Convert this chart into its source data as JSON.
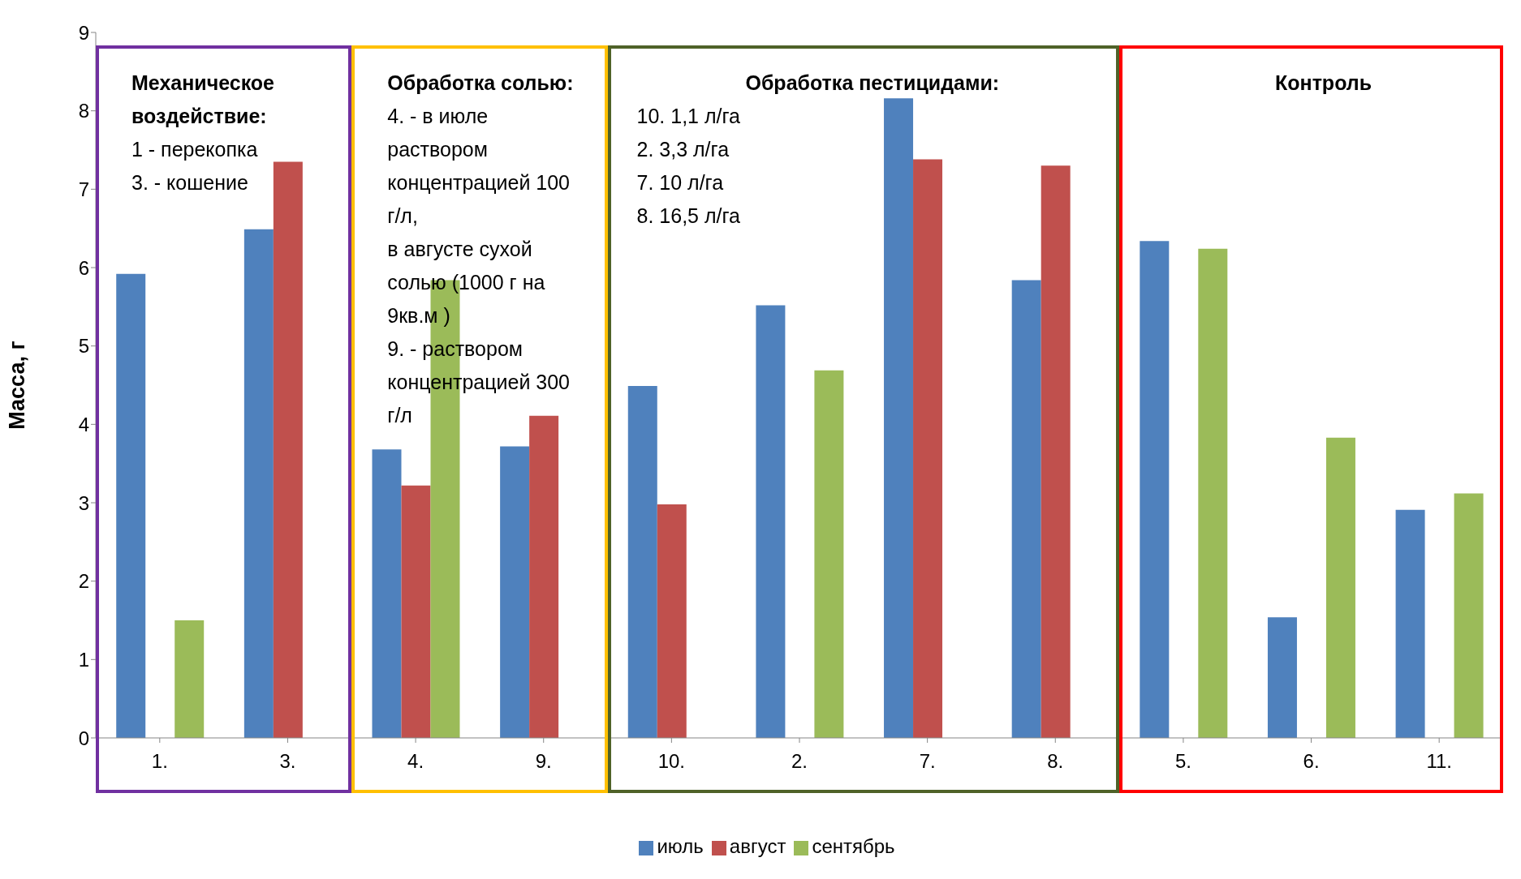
{
  "chart_data": {
    "type": "bar",
    "ylabel": "Масса, г",
    "categories": [
      "1.",
      "3.",
      "4.",
      "9.",
      "10.",
      "2.",
      "7.",
      "8.",
      "5.",
      "6.",
      "11."
    ],
    "series": [
      {
        "name": "июль",
        "color": "#4f81bd",
        "values": [
          5.92,
          6.49,
          3.68,
          3.72,
          4.49,
          5.52,
          8.16,
          5.84,
          6.34,
          1.54,
          2.91
        ]
      },
      {
        "name": "август",
        "color": "#c0504d",
        "values": [
          null,
          7.35,
          3.22,
          4.11,
          2.98,
          null,
          7.38,
          7.3,
          null,
          null,
          null
        ]
      },
      {
        "name": "сентябрь",
        "color": "#9bbb59",
        "values": [
          1.5,
          null,
          5.84,
          null,
          null,
          4.69,
          null,
          null,
          6.24,
          3.83,
          3.12
        ]
      }
    ],
    "ylim": [
      0,
      9
    ],
    "yticks": [
      0,
      1,
      2,
      3,
      4,
      5,
      6,
      7,
      8,
      9
    ],
    "grid": false,
    "legend": "bottom",
    "annotations": [
      "Механическое воздействие:\n1 - перекопка\n3. - кошение",
      "Обработка солью:\n4. - в июле раствором концентрацией 100 г/л,\nв августе сухой солью (1000 г на 9кв.м )\n9. - раствором концентрацией 300 г/л",
      "Обработка пестицидами:\n10. 1,1 л/га\n2. 3,3 л/га\n7. 10 л/га\n8. 16,5 л/га",
      "Контроль"
    ]
  }
}
